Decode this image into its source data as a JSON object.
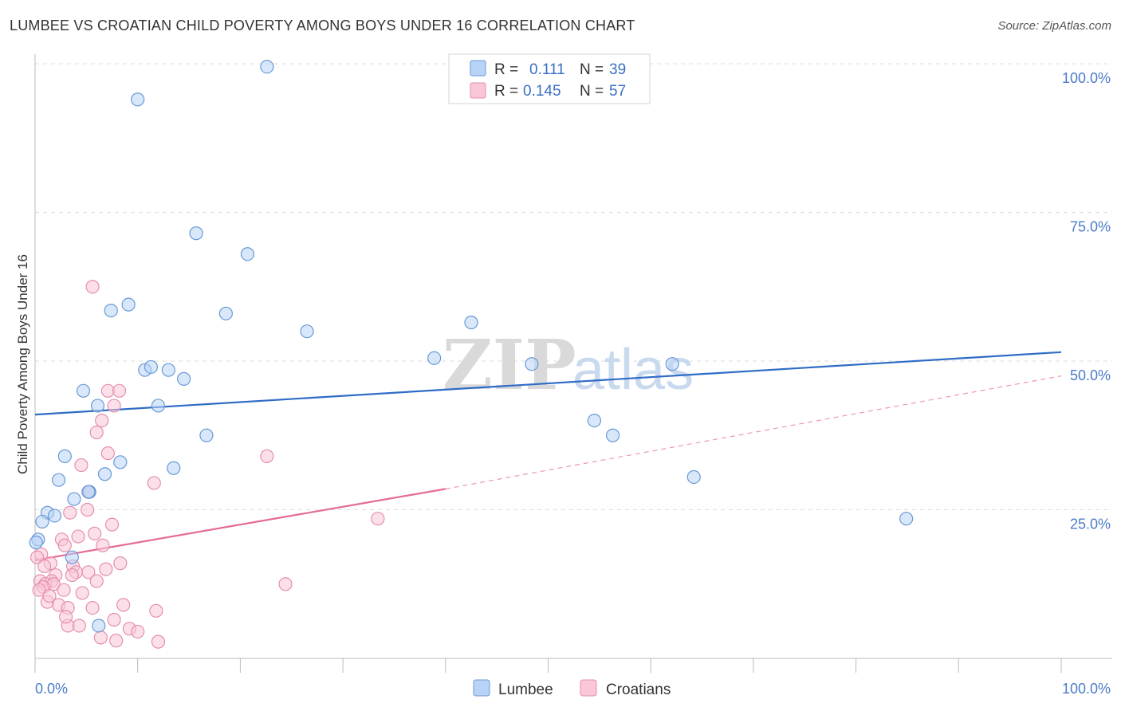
{
  "title": "LUMBEE VS CROATIAN CHILD POVERTY AMONG BOYS UNDER 16 CORRELATION CHART",
  "source": "Source: ZipAtlas.com",
  "watermark": {
    "zip": "ZIP",
    "atlas": "atlas"
  },
  "legend_top": [
    {
      "r_label": "R =",
      "r_value": "0.111",
      "n_label": "N =",
      "n_value": "39",
      "swatch_fill": "#b8d3f5",
      "swatch_stroke": "#6a9ad6"
    },
    {
      "r_label": "R =",
      "r_value": "0.145",
      "n_label": "N =",
      "n_value": "57",
      "swatch_fill": "#f9c7d7",
      "swatch_stroke": "#e58fab"
    }
  ],
  "legend_bottom": [
    {
      "label": "Lumbee",
      "fill": "#b8d3f5",
      "stroke": "#6a9ad6"
    },
    {
      "label": "Croatians",
      "fill": "#f9c7d7",
      "stroke": "#e58fab"
    }
  ],
  "chart_data": {
    "type": "scatter",
    "title": "LUMBEE VS CROATIAN CHILD POVERTY AMONG BOYS UNDER 16 CORRELATION CHART",
    "xlabel": "",
    "ylabel": "Child Poverty Among Boys Under 16",
    "xlim": [
      0,
      100
    ],
    "ylim": [
      0,
      100
    ],
    "x_tick_labels": [
      {
        "value": 0,
        "label": "0.0%"
      },
      {
        "value": 100,
        "label": "100.0%"
      }
    ],
    "y_tick_labels": [
      {
        "value": 25,
        "label": "25.0%"
      },
      {
        "value": 50,
        "label": "50.0%"
      },
      {
        "value": 75,
        "label": "75.0%"
      },
      {
        "value": 100,
        "label": "100.0%"
      }
    ],
    "grid": true,
    "legend_position": "top-center",
    "series": [
      {
        "name": "Lumbee",
        "color": "#6a9ad6",
        "fill": "#b8d3f5",
        "trend": {
          "x": [
            0,
            100
          ],
          "y": [
            41.0,
            51.5
          ],
          "color": "#2f6cc6",
          "style": "solid"
        },
        "points": [
          [
            22.6,
            99.5
          ],
          [
            10.0,
            94.0
          ],
          [
            15.7,
            71.5
          ],
          [
            20.7,
            68.0
          ],
          [
            9.1,
            59.5
          ],
          [
            7.4,
            58.5
          ],
          [
            18.6,
            58.0
          ],
          [
            26.5,
            55.0
          ],
          [
            42.5,
            56.5
          ],
          [
            38.9,
            50.5
          ],
          [
            48.4,
            49.5
          ],
          [
            62.1,
            49.5
          ],
          [
            10.7,
            48.5
          ],
          [
            11.3,
            49.0
          ],
          [
            13.0,
            48.5
          ],
          [
            14.5,
            47.0
          ],
          [
            4.7,
            45.0
          ],
          [
            6.1,
            42.5
          ],
          [
            12.0,
            42.5
          ],
          [
            54.5,
            40.0
          ],
          [
            56.3,
            37.5
          ],
          [
            16.7,
            37.5
          ],
          [
            2.9,
            34.0
          ],
          [
            8.3,
            33.0
          ],
          [
            13.5,
            32.0
          ],
          [
            6.8,
            31.0
          ],
          [
            2.3,
            30.0
          ],
          [
            64.2,
            30.5
          ],
          [
            5.3,
            28.0
          ],
          [
            5.2,
            28.0
          ],
          [
            3.8,
            26.8
          ],
          [
            1.2,
            24.5
          ],
          [
            1.9,
            24.0
          ],
          [
            0.7,
            23.0
          ],
          [
            84.9,
            23.5
          ],
          [
            0.3,
            20.0
          ],
          [
            3.6,
            17.0
          ],
          [
            6.2,
            5.5
          ],
          [
            0.1,
            19.5
          ]
        ]
      },
      {
        "name": "Croatians",
        "color": "#e58fab",
        "fill": "#f9c7d7",
        "trend": {
          "x": [
            0,
            40
          ],
          "y": [
            16.5,
            28.5
          ],
          "color": "#e46b95",
          "style": "solid",
          "extension": {
            "x": [
              40,
              100
            ],
            "y": [
              28.5,
              47.5
            ],
            "style": "dashed"
          }
        },
        "points": [
          [
            5.6,
            62.5
          ],
          [
            7.1,
            45.0
          ],
          [
            8.2,
            45.0
          ],
          [
            7.7,
            42.5
          ],
          [
            6.5,
            40.0
          ],
          [
            6.0,
            38.0
          ],
          [
            7.1,
            34.5
          ],
          [
            22.6,
            34.0
          ],
          [
            4.5,
            32.5
          ],
          [
            11.6,
            29.5
          ],
          [
            5.2,
            28.0
          ],
          [
            5.1,
            25.0
          ],
          [
            3.4,
            24.5
          ],
          [
            33.4,
            23.5
          ],
          [
            7.5,
            22.5
          ],
          [
            5.8,
            21.0
          ],
          [
            4.2,
            20.5
          ],
          [
            2.6,
            20.0
          ],
          [
            2.9,
            19.0
          ],
          [
            6.6,
            19.0
          ],
          [
            0.6,
            17.5
          ],
          [
            8.3,
            16.0
          ],
          [
            1.5,
            16.0
          ],
          [
            3.7,
            15.5
          ],
          [
            4.0,
            14.5
          ],
          [
            2.0,
            14.0
          ],
          [
            5.2,
            14.5
          ],
          [
            3.6,
            14.0
          ],
          [
            0.5,
            13.0
          ],
          [
            1.6,
            13.0
          ],
          [
            1.0,
            12.5
          ],
          [
            1.8,
            12.5
          ],
          [
            6.0,
            13.0
          ],
          [
            0.8,
            12.0
          ],
          [
            24.4,
            12.5
          ],
          [
            0.4,
            11.5
          ],
          [
            2.8,
            11.5
          ],
          [
            4.6,
            11.0
          ],
          [
            1.2,
            9.5
          ],
          [
            2.3,
            9.0
          ],
          [
            8.6,
            9.0
          ],
          [
            5.6,
            8.5
          ],
          [
            3.2,
            8.5
          ],
          [
            11.8,
            8.0
          ],
          [
            7.7,
            6.5
          ],
          [
            3.2,
            5.5
          ],
          [
            4.3,
            5.5
          ],
          [
            9.2,
            5.0
          ],
          [
            10.0,
            4.5
          ],
          [
            6.4,
            3.5
          ],
          [
            7.9,
            3.0
          ],
          [
            12.0,
            2.8
          ],
          [
            0.2,
            17.0
          ],
          [
            1.4,
            10.5
          ],
          [
            3.0,
            7.0
          ],
          [
            0.9,
            15.5
          ],
          [
            6.9,
            15.0
          ]
        ]
      }
    ]
  }
}
